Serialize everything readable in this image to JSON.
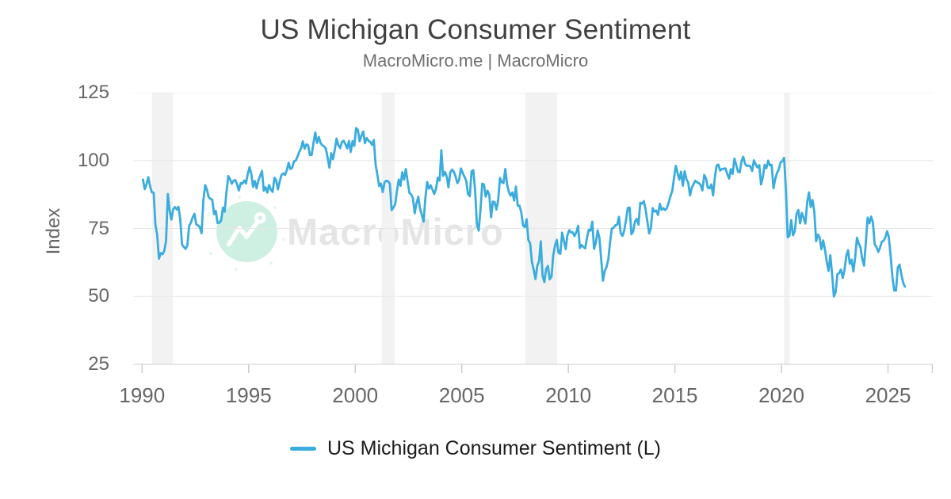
{
  "header": {
    "title": "US Michigan Consumer Sentiment",
    "subtitle": "MacroMicro.me | MacroMicro"
  },
  "watermark": {
    "brand_text": "MacroMicro",
    "logo_icon": "macromicro-mountain-chart-logo"
  },
  "legend": {
    "items": [
      {
        "label": "US Michigan Consumer Sentiment (L)",
        "color": "#3aacdd"
      }
    ]
  },
  "colors": {
    "line": "#3aacdd",
    "gridline": "#e7e7e7",
    "axis_line": "#cfcfcf",
    "tick": "#cccccc",
    "recession_band": "#f2f2f2",
    "watermark_circle": "#cdf0e3",
    "watermark_text": "#e5e5e5",
    "title": "#404040",
    "subtitle": "#6f6f6f",
    "axis_label": "#666666"
  },
  "chart_data": {
    "type": "line",
    "title": "US Michigan Consumer Sentiment",
    "xlabel": "",
    "ylabel": "Index",
    "ylim": [
      25,
      125
    ],
    "y_ticks": [
      125,
      100,
      75,
      50,
      25
    ],
    "xlim": [
      1989.58,
      2027.1
    ],
    "x_ticks": [
      1990,
      1995,
      2000,
      2005,
      2010,
      2015,
      2020,
      2025
    ],
    "grid": "horizontal",
    "legend_position": "bottom",
    "recession_bands": [
      [
        1990.46,
        1991.44
      ],
      [
        2001.24,
        2001.86
      ],
      [
        2007.97,
        2009.47
      ],
      [
        2020.12,
        2020.38
      ]
    ],
    "series": [
      {
        "name": "US Michigan Consumer Sentiment (L)",
        "color": "#3aacdd",
        "frequency": "monthly",
        "start_year": 1990,
        "start_month": 1,
        "end_label": "2025-10",
        "values": [
          93.0,
          89.5,
          91.3,
          93.9,
          90.6,
          88.3,
          88.2,
          76.4,
          72.8,
          63.9,
          66.0,
          65.5,
          66.8,
          70.4,
          87.7,
          81.8,
          78.3,
          82.1,
          82.9,
          82.0,
          83.0,
          78.3,
          69.1,
          68.2,
          67.5,
          68.8,
          76.0,
          77.2,
          79.2,
          80.4,
          76.6,
          76.1,
          75.5,
          73.3,
          85.3,
          91.0,
          89.3,
          86.6,
          85.9,
          85.6,
          80.3,
          81.5,
          77.0,
          77.1,
          77.9,
          82.7,
          81.2,
          88.2,
          94.3,
          93.2,
          91.5,
          92.6,
          92.8,
          91.2,
          89.0,
          91.7,
          91.5,
          92.7,
          91.6,
          95.1,
          97.6,
          95.1,
          90.3,
          92.5,
          89.8,
          92.7,
          94.4,
          96.2,
          88.9,
          90.2,
          88.2,
          91.0,
          89.3,
          88.5,
          93.7,
          92.7,
          89.4,
          92.4,
          94.7,
          95.3,
          94.7,
          96.5,
          99.2,
          96.9,
          97.4,
          99.7,
          100.0,
          101.4,
          103.2,
          104.5,
          107.1,
          104.4,
          106.0,
          105.6,
          102.0,
          102.1,
          106.6,
          110.4,
          106.5,
          108.7,
          106.5,
          105.6,
          105.2,
          104.4,
          100.9,
          97.4,
          102.7,
          100.5,
          103.9,
          108.1,
          105.7,
          104.6,
          106.8,
          107.3,
          106.0,
          104.5,
          107.2,
          103.2,
          107.2,
          105.4,
          112.0,
          111.3,
          107.1,
          109.2,
          110.7,
          106.4,
          108.3,
          107.3,
          106.8,
          105.8,
          107.6,
          98.4,
          94.7,
          90.6,
          91.5,
          88.4,
          92.0,
          92.6,
          92.4,
          91.5,
          81.8,
          82.7,
          83.9,
          88.8,
          93.0,
          90.7,
          95.7,
          93.0,
          96.9,
          92.4,
          88.1,
          87.6,
          86.1,
          80.6,
          84.2,
          86.7,
          82.4,
          79.9,
          77.6,
          86.0,
          92.1,
          89.7,
          90.9,
          89.3,
          87.7,
          89.6,
          93.7,
          92.6,
          103.8,
          94.4,
          95.8,
          94.2,
          90.2,
          95.6,
          96.7,
          95.9,
          94.2,
          91.7,
          92.8,
          97.1,
          95.5,
          94.1,
          92.6,
          87.7,
          86.9,
          96.0,
          96.5,
          89.1,
          76.9,
          74.2,
          81.6,
          91.5,
          91.2,
          86.7,
          88.9,
          87.4,
          79.1,
          84.9,
          84.7,
          82.0,
          85.4,
          93.6,
          92.1,
          91.7,
          96.9,
          91.3,
          88.4,
          87.1,
          88.3,
          85.3,
          90.4,
          83.4,
          83.4,
          80.9,
          76.1,
          75.5,
          78.4,
          70.8,
          69.5,
          62.6,
          59.8,
          56.4,
          61.2,
          63.0,
          70.3,
          57.6,
          55.3,
          60.1,
          61.2,
          56.3,
          57.3,
          65.1,
          68.7,
          70.8,
          66.0,
          65.7,
          73.5,
          70.6,
          67.4,
          72.5,
          74.4,
          73.6,
          73.6,
          72.2,
          73.6,
          76.0,
          67.8,
          68.9,
          68.2,
          67.7,
          71.6,
          74.5,
          74.2,
          77.5,
          67.5,
          69.8,
          74.3,
          71.5,
          63.7,
          55.8,
          59.5,
          60.8,
          63.7,
          69.9,
          75.0,
          75.3,
          76.2,
          76.4,
          79.3,
          73.2,
          72.3,
          74.3,
          78.3,
          82.6,
          82.7,
          72.9,
          73.8,
          77.6,
          78.6,
          76.4,
          84.5,
          84.1,
          85.1,
          82.1,
          77.5,
          73.2,
          75.1,
          82.5,
          81.2,
          81.6,
          80.0,
          84.1,
          81.9,
          82.5,
          81.8,
          82.5,
          84.6,
          86.9,
          88.8,
          93.6,
          98.1,
          95.4,
          93.0,
          95.9,
          90.7,
          96.1,
          93.1,
          91.9,
          87.2,
          90.0,
          91.3,
          92.6,
          92.0,
          91.7,
          91.0,
          89.0,
          94.7,
          93.5,
          90.0,
          89.8,
          91.2,
          87.2,
          93.8,
          98.2,
          98.5,
          96.3,
          96.9,
          97.0,
          97.1,
          95.0,
          93.4,
          96.8,
          95.1,
          100.7,
          98.5,
          95.9,
          95.7,
          99.7,
          101.4,
          98.8,
          98.0,
          98.2,
          97.9,
          96.2,
          100.1,
          98.6,
          97.5,
          98.3,
          91.2,
          93.8,
          98.4,
          97.2,
          100.0,
          98.2,
          98.4,
          89.8,
          93.2,
          95.5,
          96.8,
          99.3,
          99.8,
          101.0,
          89.1,
          71.8,
          72.3,
          78.1,
          72.5,
          74.1,
          80.4,
          81.8,
          76.9,
          80.7,
          79.0,
          76.8,
          84.9,
          88.3,
          82.9,
          85.5,
          81.2,
          70.3,
          72.8,
          71.7,
          67.4,
          70.6,
          67.2,
          62.8,
          59.4,
          65.2,
          58.4,
          50.0,
          51.5,
          58.2,
          58.6,
          59.9,
          56.8,
          59.7,
          64.9,
          67.0,
          62.0,
          63.5,
          59.2,
          64.4,
          71.6,
          69.5,
          68.1,
          63.8,
          61.3,
          69.7,
          79.0,
          76.9,
          79.4,
          77.2,
          69.1,
          68.2,
          66.4,
          67.9,
          70.1,
          70.5,
          71.8,
          74.0,
          71.7,
          64.7,
          57.0,
          52.2,
          52.2,
          60.7,
          61.7,
          58.2,
          55.1,
          53.6
        ]
      }
    ]
  }
}
